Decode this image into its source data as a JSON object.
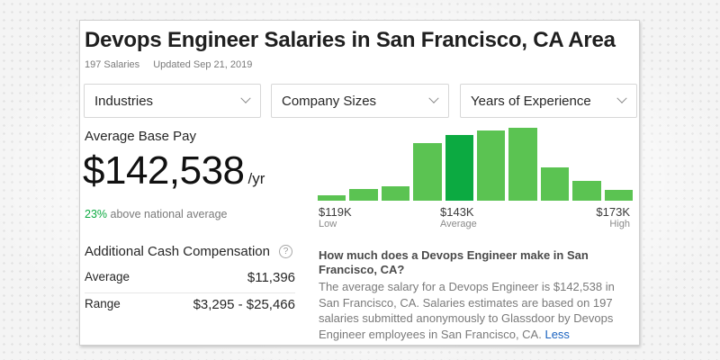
{
  "header": {
    "title": "Devops Engineer Salaries in San Francisco, CA Area",
    "salary_count": "197 Salaries",
    "updated": "Updated Sep 21, 2019"
  },
  "filters": [
    {
      "label": "Industries",
      "icon": "chevron-down-icon"
    },
    {
      "label": "Company Sizes",
      "icon": "chevron-down-icon"
    },
    {
      "label": "Years of Experience",
      "icon": "chevron-down-icon"
    }
  ],
  "base_pay": {
    "label": "Average Base Pay",
    "value": "$142,538",
    "unit": "/yr",
    "comparison_pct": "23%",
    "comparison_text": " above national average"
  },
  "cash_comp": {
    "title": "Additional Cash Compensation",
    "help_icon": "?",
    "rows": [
      {
        "label": "Average",
        "value": "$11,396"
      },
      {
        "label": "Range",
        "value": "$3,295 - $25,466"
      }
    ]
  },
  "colors": {
    "bar": "#5bc352",
    "bar_highlight": "#0caa41",
    "positive": "#0caa41",
    "link": "#1861bf"
  },
  "chart_data": {
    "type": "bar",
    "title": "",
    "categories": [
      "1",
      "2",
      "3",
      "4",
      "5",
      "6",
      "7",
      "8",
      "9",
      "10"
    ],
    "values": [
      6,
      12,
      15,
      60,
      69,
      73,
      76,
      35,
      21,
      11
    ],
    "value_units": "relative frequency (approx.)",
    "highlight_index": 4,
    "ylim": [
      0,
      80
    ],
    "grid": false,
    "axis_labels": [
      {
        "value": "$119K",
        "sub": "Low"
      },
      {
        "value": "$143K",
        "sub": "Average"
      },
      {
        "value": "$173K",
        "sub": "High"
      }
    ]
  },
  "faq": {
    "question": "How much does a Devops Engineer make in San Francisco, CA?",
    "answer": "The average salary for a Devops Engineer is $142,538 in San Francisco, CA. Salaries estimates are based on 197 salaries submitted anonymously to Glassdoor by Devops Engineer employees in San Francisco, CA. ",
    "less_link": "Less"
  }
}
